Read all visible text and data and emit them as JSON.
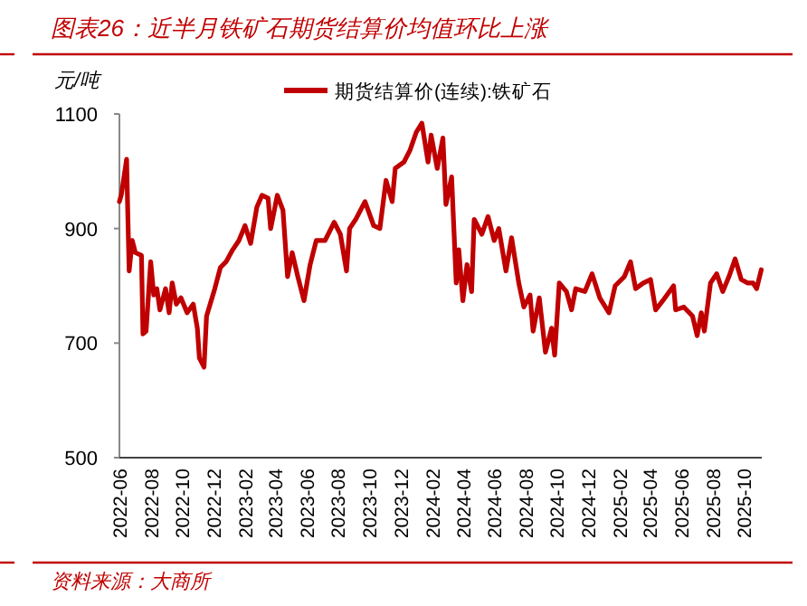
{
  "chart_data": {
    "type": "line",
    "title": "图表26：近半月铁矿石期货结算价均值环比上涨",
    "ylabel": "元/吨",
    "legend": "top",
    "grid": false,
    "marker": "none",
    "line_style": "solid",
    "annotations": [
      "资料来源：大商所"
    ],
    "ylim": [
      500,
      1100
    ],
    "yticks": [
      500,
      700,
      900,
      1100
    ],
    "xlim": [
      "2022-06-01",
      "2025-11-05"
    ],
    "xticks": [
      "2022-06",
      "2022-08",
      "2022-10",
      "2022-12",
      "2023-02",
      "2023-04",
      "2023-06",
      "2023-08",
      "2023-10",
      "2023-12",
      "2024-02",
      "2024-04",
      "2024-06",
      "2024-08",
      "2024-10",
      "2024-12",
      "2025-02",
      "2025-04",
      "2025-06",
      "2025-08",
      "2025-10"
    ],
    "x": [
      "2022-06-01",
      "2022-06-05",
      "2022-06-15",
      "2022-06-17",
      "2022-06-20",
      "2022-06-26",
      "2022-07-02",
      "2022-07-14",
      "2022-07-17",
      "2022-07-23",
      "2022-08-01",
      "2022-08-07",
      "2022-08-13",
      "2022-08-19",
      "2022-08-30",
      "2022-09-06",
      "2022-09-12",
      "2022-09-20",
      "2022-09-29",
      "2022-10-11",
      "2022-10-23",
      "2022-10-31",
      "2022-11-04",
      "2022-11-13",
      "2022-11-18",
      "2022-11-25",
      "2022-12-04",
      "2022-12-15",
      "2022-12-26",
      "2023-01-08",
      "2023-01-20",
      "2023-02-01",
      "2023-02-12",
      "2023-02-24",
      "2023-03-06",
      "2023-03-18",
      "2023-03-23",
      "2023-04-05",
      "2023-04-16",
      "2023-04-25",
      "2023-05-04",
      "2023-05-15",
      "2023-05-27",
      "2023-06-08",
      "2023-06-20",
      "2023-07-07",
      "2023-07-25",
      "2023-08-06",
      "2023-08-18",
      "2023-08-24",
      "2023-09-05",
      "2023-09-23",
      "2023-10-10",
      "2023-10-22",
      "2023-11-03",
      "2023-11-15",
      "2023-11-21",
      "2023-12-08",
      "2023-12-20",
      "2024-01-01",
      "2024-01-12",
      "2024-01-24",
      "2024-01-30",
      "2024-02-11",
      "2024-02-22",
      "2024-02-28",
      "2024-03-10",
      "2024-03-19",
      "2024-03-24",
      "2024-04-01",
      "2024-04-09",
      "2024-04-18",
      "2024-04-23",
      "2024-05-08",
      "2024-05-20",
      "2024-06-01",
      "2024-06-10",
      "2024-06-24",
      "2024-07-05",
      "2024-07-19",
      "2024-07-29",
      "2024-08-10",
      "2024-08-16",
      "2024-08-28",
      "2024-09-09",
      "2024-09-21",
      "2024-09-27",
      "2024-10-06",
      "2024-10-20",
      "2024-10-30",
      "2024-11-07",
      "2024-11-25",
      "2024-12-09",
      "2024-12-24",
      "2025-01-11",
      "2025-01-23",
      "2025-02-10",
      "2025-02-22",
      "2025-03-04",
      "2025-03-19",
      "2025-04-02",
      "2025-04-12",
      "2025-04-26",
      "2025-05-17",
      "2025-05-21",
      "2025-06-06",
      "2025-06-23",
      "2025-07-02",
      "2025-07-10",
      "2025-07-16",
      "2025-07-28",
      "2025-08-09",
      "2025-08-21",
      "2025-09-02",
      "2025-09-14",
      "2025-09-26",
      "2025-10-08",
      "2025-10-19",
      "2025-10-26",
      "2025-11-04"
    ],
    "series": [
      {
        "name": "期货结算价(连续):铁矿石",
        "color": "#c00000",
        "values": [
          947,
          960,
          1021,
          940,
          826,
          879,
          858,
          853,
          716,
          721,
          842,
          784,
          795,
          758,
          795,
          753,
          805,
          768,
          779,
          753,
          768,
          726,
          674,
          658,
          747,
          768,
          795,
          832,
          842,
          863,
          879,
          905,
          874,
          937,
          958,
          953,
          900,
          958,
          932,
          816,
          858,
          816,
          774,
          837,
          879,
          879,
          911,
          890,
          826,
          900,
          916,
          947,
          905,
          900,
          984,
          947,
          1005,
          1016,
          1037,
          1068,
          1084,
          1016,
          1063,
          1005,
          1058,
          942,
          990,
          805,
          863,
          774,
          837,
          790,
          916,
          890,
          921,
          879,
          900,
          826,
          884,
          805,
          763,
          784,
          721,
          779,
          684,
          726,
          679,
          805,
          790,
          758,
          795,
          790,
          821,
          779,
          753,
          800,
          816,
          842,
          795,
          805,
          811,
          758,
          774,
          800,
          758,
          763,
          747,
          713,
          753,
          721,
          805,
          821,
          790,
          816,
          847,
          811,
          805,
          805,
          795,
          828
        ]
      }
    ]
  }
}
